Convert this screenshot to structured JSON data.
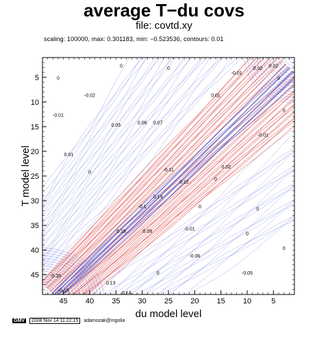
{
  "title": "average T−du covs",
  "file_label": "file: covtd.xy",
  "info_line": "scaling: 100000,  max: 0.301183,  min: −0.523536,  contours: 0.01",
  "footer": {
    "badge": "GMV",
    "timestamp": "2008 Nov 14 11:22:15",
    "user": "adamozak@mgolia"
  },
  "colors": {
    "positive": "#e05050",
    "negative": "#4a5ad8",
    "zero": "#808080",
    "axis": "#000000"
  },
  "chart_data": {
    "type": "heatmap",
    "plot_style": "contour",
    "xlabel": "du model level",
    "ylabel": "T model level",
    "xlim": [
      49,
      1
    ],
    "ylim": [
      1,
      49
    ],
    "x_ticks": [
      45,
      40,
      35,
      30,
      25,
      20,
      15,
      10,
      5
    ],
    "y_ticks": [
      5,
      10,
      15,
      20,
      25,
      30,
      35,
      40,
      45
    ],
    "max": 0.301183,
    "min": -0.523536,
    "contour_interval": 0.01,
    "scaling": 100000,
    "contour_labels": [
      {
        "x": 46,
        "y": 5.5,
        "text": "0"
      },
      {
        "x": 34,
        "y": 3.0,
        "text": "0"
      },
      {
        "x": 25,
        "y": 3.5,
        "text": "0"
      },
      {
        "x": 40,
        "y": 9.0,
        "text": "-0.02"
      },
      {
        "x": 46,
        "y": 13.0,
        "text": "-0.01"
      },
      {
        "x": 35,
        "y": 15.0,
        "text": "0.05"
      },
      {
        "x": 30,
        "y": 14.5,
        "text": "0.06"
      },
      {
        "x": 27,
        "y": 14.5,
        "text": "0.07"
      },
      {
        "x": 16,
        "y": 9.0,
        "text": "0.01"
      },
      {
        "x": 12,
        "y": 4.5,
        "text": "-0.01"
      },
      {
        "x": 8,
        "y": 3.5,
        "text": "0.02"
      },
      {
        "x": 5,
        "y": 3.0,
        "text": "0.02"
      },
      {
        "x": 4,
        "y": 5.5,
        "text": "0"
      },
      {
        "x": 3,
        "y": 12.0,
        "text": "0"
      },
      {
        "x": 7,
        "y": 17.0,
        "text": "-0.01"
      },
      {
        "x": 44,
        "y": 21.0,
        "text": "0.01"
      },
      {
        "x": 40,
        "y": 24.5,
        "text": "0"
      },
      {
        "x": 25,
        "y": 24.0,
        "text": "-0.11"
      },
      {
        "x": 22,
        "y": 26.5,
        "text": "0.12"
      },
      {
        "x": 30,
        "y": 31.5,
        "text": "-0.1"
      },
      {
        "x": 27,
        "y": 29.5,
        "text": "0.19"
      },
      {
        "x": 16,
        "y": 26.0,
        "text": "0"
      },
      {
        "x": 19,
        "y": 31.5,
        "text": "0"
      },
      {
        "x": 8,
        "y": 32.0,
        "text": "0"
      },
      {
        "x": 34,
        "y": 36.5,
        "text": "0.18"
      },
      {
        "x": 29,
        "y": 36.5,
        "text": "0.09"
      },
      {
        "x": 10,
        "y": 37.0,
        "text": "0"
      },
      {
        "x": 3,
        "y": 40.0,
        "text": "0"
      },
      {
        "x": 20,
        "y": 41.5,
        "text": "-0.06"
      },
      {
        "x": 10,
        "y": 45.0,
        "text": "-0.05"
      },
      {
        "x": 27,
        "y": 45.0,
        "text": "0"
      },
      {
        "x": 46.5,
        "y": 45.5,
        "text": "-0.35"
      },
      {
        "x": 45,
        "y": 48.5,
        "text": "-0.15"
      },
      {
        "x": 36,
        "y": 47.0,
        "text": "0.13"
      },
      {
        "x": 33,
        "y": 49.0,
        "text": "0.14"
      },
      {
        "x": 21,
        "y": 36.0,
        "text": "-0.01"
      },
      {
        "x": 14,
        "y": 23.5,
        "text": "0.02"
      }
    ]
  }
}
